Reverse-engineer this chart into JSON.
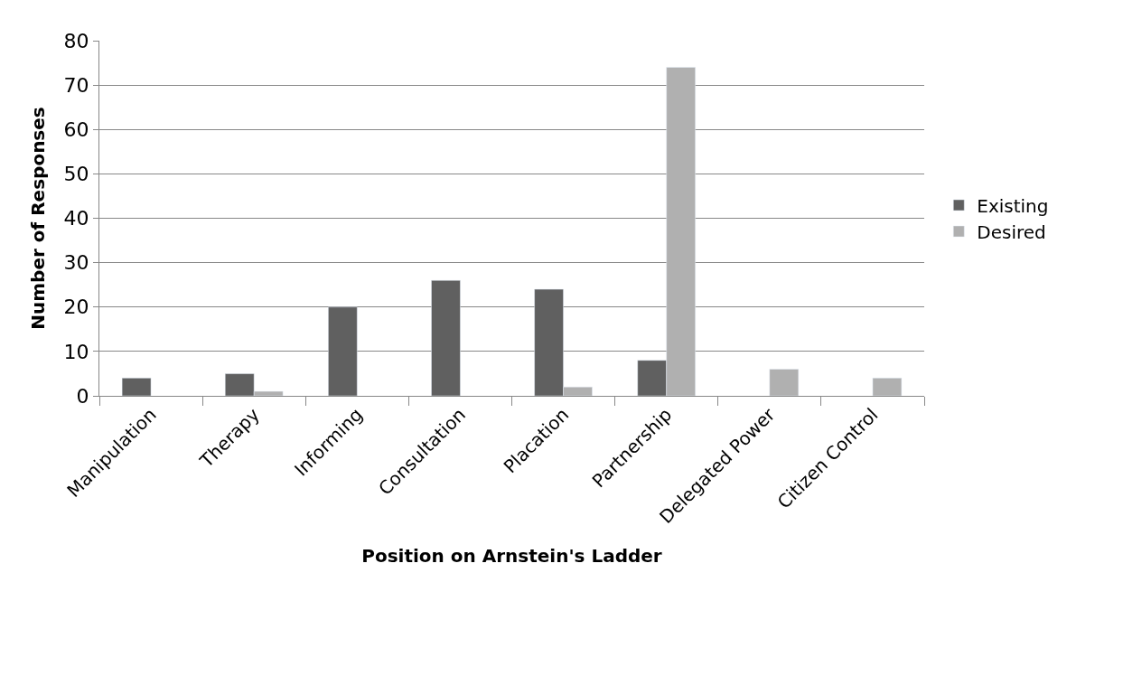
{
  "chart_data": {
    "type": "bar",
    "xlabel": "Position on Arnstein's Ladder",
    "ylabel": "Number of Responses",
    "categories": [
      "Manipulation",
      "Therapy",
      "Informing",
      "Consultation",
      "Placation",
      "Partnership",
      "Delegated Power",
      "Citizen Control"
    ],
    "series": [
      {
        "name": "Existing",
        "color": "#606060",
        "values": [
          4,
          5,
          20,
          26,
          24,
          8,
          null,
          null
        ]
      },
      {
        "name": "Desired",
        "color": "#b0b0b0",
        "values": [
          null,
          1,
          null,
          null,
          2,
          74,
          6,
          4
        ]
      }
    ],
    "ylim": [
      0,
      80
    ],
    "yticks": [
      0,
      10,
      20,
      30,
      40,
      50,
      60,
      70,
      80
    ],
    "grid": "y",
    "legend": "right"
  }
}
